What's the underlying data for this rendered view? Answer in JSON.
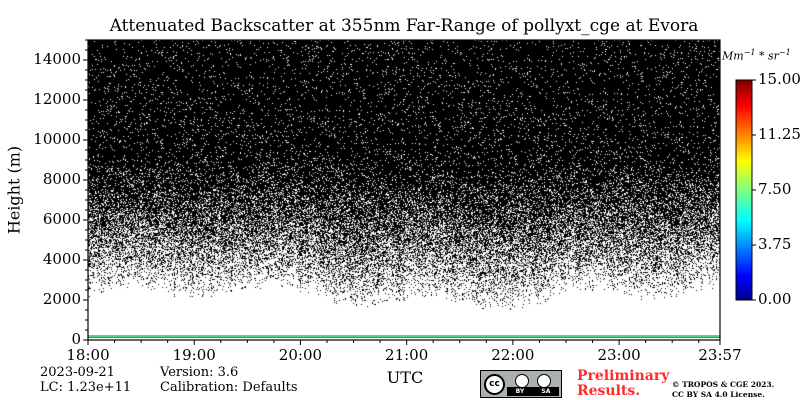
{
  "chart_data": {
    "type": "heatmap",
    "title": "Attenuated Backscatter at 355nm Far-Range of pollyxt_cge at Evora",
    "xlabel": "UTC",
    "ylabel": "Height (m)",
    "x_tick_labels": [
      "18:00",
      "19:00",
      "20:00",
      "21:00",
      "22:00",
      "23:00",
      "23:57"
    ],
    "x_tick_hours": [
      18.0,
      19.0,
      20.0,
      21.0,
      22.0,
      23.0,
      23.95
    ],
    "xlim_hours": [
      18.0,
      23.95
    ],
    "y_ticks": [
      0,
      2000,
      4000,
      6000,
      8000,
      10000,
      12000,
      14000
    ],
    "y_tick_labels": [
      "0",
      "2000",
      "4000",
      "6000",
      "8000",
      "10000",
      "12000",
      "14000"
    ],
    "ylim": [
      0,
      15000
    ],
    "colorbar": {
      "unit_base": "Mm",
      "unit_exp1": "−1",
      "unit_mid": " * sr",
      "unit_exp2": "−1",
      "ticks": [
        0.0,
        3.75,
        7.5,
        11.25,
        15.0
      ],
      "tick_labels": [
        "0.00",
        "3.75",
        "7.50",
        "11.25",
        "15.00"
      ],
      "range": [
        0,
        15
      ]
    },
    "data_description": {
      "near_ground_layer_height_m": [
        0,
        200
      ],
      "noise_clear_below_m": 2000,
      "dense_noise_above_m": 11500
    }
  },
  "footer": {
    "date": "2023-09-21",
    "version": "Version: 3.6",
    "lc": "LC: 1.23e+11",
    "calibration": "Calibration: Defaults",
    "preliminary_1": "Preliminary",
    "preliminary_2": "Results.",
    "copyright_1": "© TROPOS & CGE 2023.",
    "copyright_2": "CC BY SA 4.0 License.",
    "cc_logo": "cc",
    "cc_by": "BY",
    "cc_sa": "SA",
    "preliminary_color": "#ff2a2a"
  }
}
